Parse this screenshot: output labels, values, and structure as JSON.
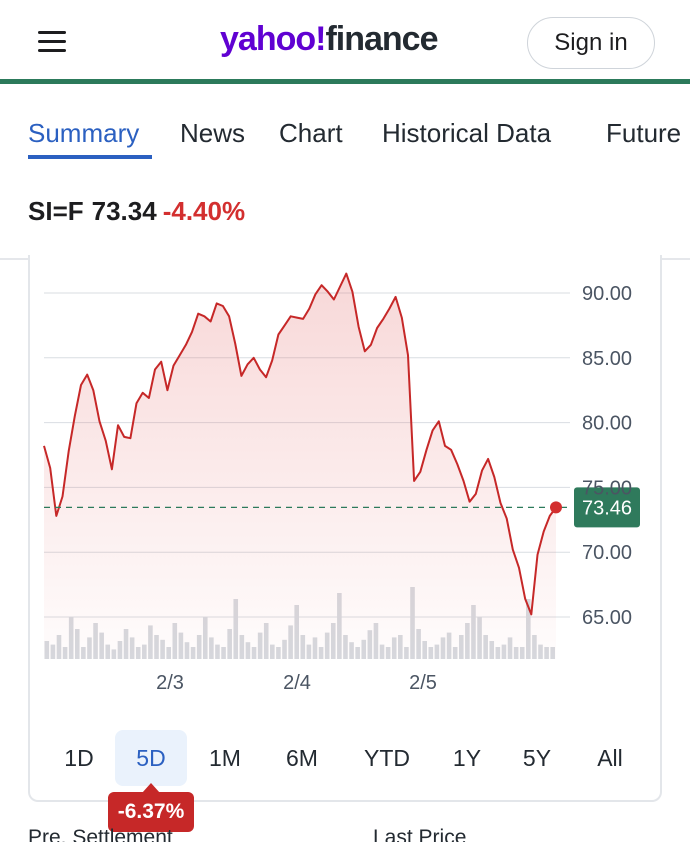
{
  "header": {
    "logo_part1": "yahoo!",
    "logo_part2": "finance",
    "signin_label": "Sign in",
    "brand_color": "#6001d2",
    "accent_color": "#2c7a5b"
  },
  "tabs": [
    {
      "label": "Summary",
      "active": true
    },
    {
      "label": "News",
      "active": false
    },
    {
      "label": "Chart",
      "active": false
    },
    {
      "label": "Historical Data",
      "active": false
    },
    {
      "label": "Future",
      "active": false
    }
  ],
  "quote": {
    "symbol": "SI=F",
    "price": "73.34",
    "change": "-4.40%"
  },
  "chart_data": {
    "type": "line",
    "y_ticks": [
      "90.00",
      "85.00",
      "80.00",
      "75.00",
      "70.00",
      "65.00"
    ],
    "x_ticks": [
      "2/3",
      "2/4",
      "2/5"
    ],
    "ylim": [
      64,
      92
    ],
    "reference_value": 73.46,
    "reference_label": "73.46",
    "series": [
      {
        "values": [
          78.2,
          76.5,
          72.8,
          74.3,
          77.8,
          80.5,
          82.9,
          83.7,
          82.5,
          80.1,
          78.6,
          76.4,
          79.8,
          78.9,
          78.8,
          81.5,
          82.3,
          81.9,
          84.1,
          84.7,
          82.5,
          84.4,
          85.2,
          86.0,
          87.0,
          88.4,
          88.2,
          87.8,
          89.2,
          89.0,
          88.2,
          86.1,
          83.6,
          84.5,
          85.0,
          84.1,
          83.5,
          84.8,
          86.8,
          87.5,
          88.2,
          88.1,
          88.0,
          88.8,
          89.9,
          90.6,
          90.1,
          89.5,
          90.5,
          91.5,
          90.1,
          87.4,
          85.5,
          86.0,
          87.3,
          88.0,
          88.8,
          89.7,
          88.1,
          85.2,
          75.5,
          76.2,
          77.9,
          79.4,
          80.1,
          78.2,
          77.9,
          76.8,
          75.5,
          73.9,
          74.5,
          76.3,
          77.2,
          75.8,
          73.8,
          72.6,
          70.2,
          68.8,
          66.4,
          65.2,
          69.8,
          71.6,
          72.8,
          73.46
        ],
        "color": "#c62828"
      }
    ],
    "volume": [
      0.15,
      0.12,
      0.2,
      0.1,
      0.35,
      0.25,
      0.1,
      0.18,
      0.3,
      0.22,
      0.12,
      0.08,
      0.15,
      0.25,
      0.18,
      0.1,
      0.12,
      0.28,
      0.2,
      0.16,
      0.1,
      0.3,
      0.22,
      0.14,
      0.1,
      0.2,
      0.35,
      0.18,
      0.12,
      0.1,
      0.25,
      0.5,
      0.2,
      0.14,
      0.1,
      0.22,
      0.3,
      0.12,
      0.1,
      0.16,
      0.28,
      0.45,
      0.2,
      0.12,
      0.18,
      0.1,
      0.22,
      0.3,
      0.55,
      0.2,
      0.14,
      0.1,
      0.16,
      0.24,
      0.3,
      0.12,
      0.1,
      0.18,
      0.2,
      0.1,
      0.6,
      0.25,
      0.15,
      0.1,
      0.12,
      0.18,
      0.22,
      0.1,
      0.2,
      0.3,
      0.45,
      0.35,
      0.2,
      0.15,
      0.1,
      0.12,
      0.18,
      0.1,
      0.1,
      0.5,
      0.2,
      0.12,
      0.1,
      0.1
    ]
  },
  "ranges": [
    {
      "label": "1D",
      "active": false
    },
    {
      "label": "5D",
      "active": true
    },
    {
      "label": "1M",
      "active": false
    },
    {
      "label": "6M",
      "active": false
    },
    {
      "label": "YTD",
      "active": false
    },
    {
      "label": "1Y",
      "active": false
    },
    {
      "label": "5Y",
      "active": false
    },
    {
      "label": "All",
      "active": false
    }
  ],
  "period_change": "-6.37%",
  "footer": {
    "left_label": "Pre. Settlement",
    "right_label": "Last Price"
  }
}
